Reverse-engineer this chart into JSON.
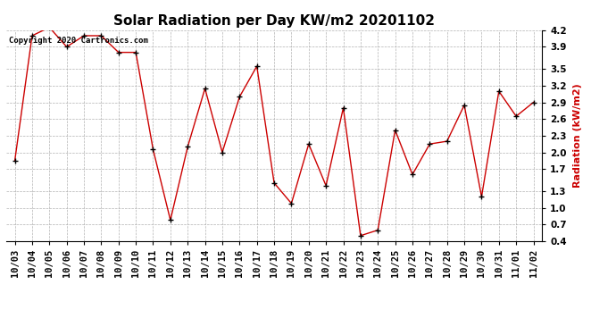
{
  "title": "Solar Radiation per Day KW/m2 20201102",
  "ylabel": "Radiation (kW/m2)",
  "copyright": "Copyright 2020 Cartronics.com",
  "categories": [
    "10/03",
    "10/04",
    "10/05",
    "10/06",
    "10/07",
    "10/08",
    "10/09",
    "10/10",
    "10/11",
    "10/12",
    "10/13",
    "10/14",
    "10/15",
    "10/16",
    "10/17",
    "10/18",
    "10/19",
    "10/20",
    "10/21",
    "10/22",
    "10/23",
    "10/24",
    "10/25",
    "10/26",
    "10/27",
    "10/28",
    "10/29",
    "10/30",
    "10/31",
    "11/01",
    "11/02"
  ],
  "values": [
    1.85,
    4.1,
    4.25,
    3.9,
    4.1,
    4.1,
    3.8,
    3.8,
    2.05,
    0.78,
    2.1,
    3.15,
    2.0,
    3.0,
    3.55,
    1.45,
    1.08,
    2.15,
    1.4,
    2.8,
    0.5,
    0.6,
    2.4,
    1.6,
    2.15,
    2.2,
    2.85,
    1.2,
    3.1,
    2.65,
    2.9
  ],
  "line_color": "#cc0000",
  "marker_color": "#000000",
  "ylabel_color": "#cc0000",
  "title_color": "#000000",
  "copyright_color": "#000000",
  "background_color": "#ffffff",
  "grid_color": "#aaaaaa",
  "ylim": [
    0.4,
    4.2
  ],
  "yticks": [
    0.4,
    0.7,
    1.0,
    1.3,
    1.7,
    2.0,
    2.3,
    2.6,
    2.9,
    3.2,
    3.5,
    3.9,
    4.2
  ],
  "title_fontsize": 11,
  "ylabel_fontsize": 8,
  "tick_fontsize": 7.5,
  "copyright_fontsize": 6.5
}
